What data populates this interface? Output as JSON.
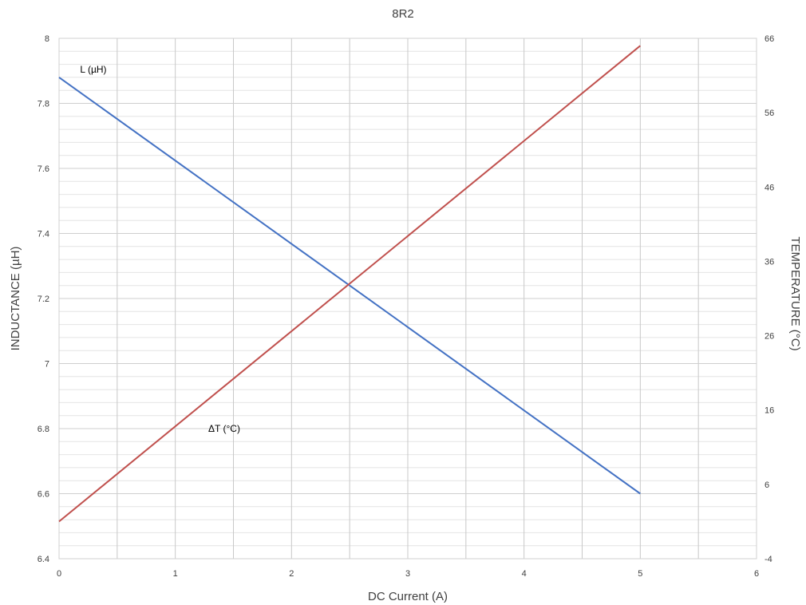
{
  "chart_data": {
    "type": "line",
    "title": "8R2",
    "xlabel": "DC Current (A)",
    "ylabel": "INDUCTANCE (µH)",
    "y2label": "TEMPERATURE (°C)",
    "xlim": [
      0,
      6
    ],
    "ylim": [
      6.4,
      8
    ],
    "y2lim": [
      -4,
      66
    ],
    "x_ticks": [
      0,
      1,
      2,
      3,
      4,
      5,
      6
    ],
    "x_tick_labels": [
      "0",
      "1",
      "2",
      "3",
      "4",
      "5",
      "6"
    ],
    "y_ticks": [
      6.4,
      6.6,
      6.8,
      7,
      7.2,
      7.4,
      7.6,
      7.8,
      8
    ],
    "y_tick_labels": [
      "6.4",
      "6.6",
      "6.8",
      "7",
      "7.2",
      "7.4",
      "7.6",
      "7.8",
      "8"
    ],
    "y2_ticks": [
      -4,
      6,
      16,
      26,
      36,
      46,
      56,
      66
    ],
    "y2_tick_labels": [
      "-4",
      "6",
      "16",
      "26",
      "36",
      "46",
      "56",
      "66"
    ],
    "x_minor_step": 0.5,
    "y_minor_step": 0.04,
    "grid": true,
    "legend": "none",
    "series": [
      {
        "name": "L (µH)",
        "axis": "left",
        "color": "#4472C4",
        "x": [
          0,
          5
        ],
        "y": [
          7.88,
          6.6
        ]
      },
      {
        "name": "ΔT (°C)",
        "axis": "right",
        "color": "#C0504D",
        "x": [
          0,
          5
        ],
        "y": [
          1,
          65
        ]
      }
    ],
    "annotations": [
      {
        "text": "L (µH)",
        "series": 0
      },
      {
        "text": "ΔT (°C)",
        "series": 1
      }
    ]
  }
}
